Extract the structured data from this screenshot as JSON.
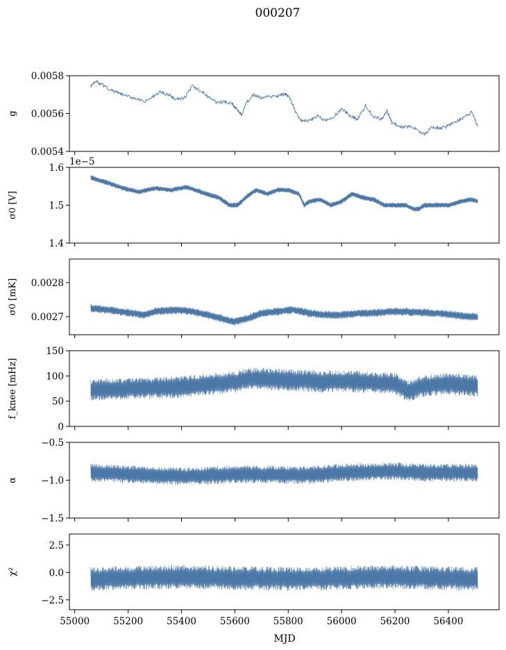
{
  "figure": {
    "title": "000207",
    "xlabel": "MJD"
  },
  "colors": {
    "series": "#4c78a8",
    "axis": "#000000",
    "background": "#ffffff"
  },
  "chart_data": [
    {
      "type": "line",
      "ylabel": "g",
      "ylim": [
        0.0054,
        0.0058
      ],
      "yticks": [
        0.0054,
        0.0056,
        0.0058
      ],
      "ytick_labels": [
        "0.0054",
        "0.0056",
        "0.0058"
      ],
      "xlim": [
        54980,
        56590
      ],
      "x": [
        55060,
        55080,
        55100,
        55140,
        55170,
        55200,
        55230,
        55260,
        55290,
        55320,
        55350,
        55380,
        55410,
        55440,
        55470,
        55500,
        55530,
        55560,
        55590,
        55610,
        55625,
        55640,
        55670,
        55700,
        55730,
        55760,
        55790,
        55810,
        55830,
        55850,
        55880,
        55910,
        55940,
        55970,
        56000,
        56030,
        56060,
        56090,
        56120,
        56150,
        56170,
        56190,
        56220,
        56250,
        56280,
        56310,
        56340,
        56370,
        56400,
        56430,
        56460,
        56490,
        56510
      ],
      "y": [
        0.005745,
        0.00577,
        0.005755,
        0.00572,
        0.005705,
        0.00569,
        0.00568,
        0.00566,
        0.005685,
        0.005715,
        0.0057,
        0.005675,
        0.00568,
        0.005745,
        0.00572,
        0.00569,
        0.00566,
        0.00566,
        0.00565,
        0.00562,
        0.005595,
        0.00565,
        0.0057,
        0.00568,
        0.00569,
        0.00569,
        0.005705,
        0.00567,
        0.0056,
        0.00556,
        0.00556,
        0.00559,
        0.00556,
        0.00558,
        0.005625,
        0.00559,
        0.00557,
        0.00564,
        0.00558,
        0.00557,
        0.005615,
        0.00555,
        0.00553,
        0.00553,
        0.00552,
        0.00549,
        0.00553,
        0.00552,
        0.005535,
        0.00556,
        0.00558,
        0.00561,
        0.00553
      ],
      "noise": 0
    },
    {
      "type": "line",
      "ylabel": "σ0 [V]",
      "offset_label": "1e−5",
      "ylim": [
        1.4e-05,
        1.6e-05
      ],
      "yticks": [
        1.4e-05,
        1.5e-05,
        1.6e-05
      ],
      "ytick_labels": [
        "1.4",
        "1.5",
        "1.6"
      ],
      "xlim": [
        54980,
        56590
      ],
      "x": [
        55060,
        55120,
        55180,
        55240,
        55300,
        55360,
        55420,
        55480,
        55540,
        55580,
        55610,
        55640,
        55680,
        55720,
        55760,
        55800,
        55840,
        55860,
        55880,
        55920,
        55960,
        56000,
        56040,
        56080,
        56120,
        56160,
        56200,
        56240,
        56270,
        56290,
        56310,
        56350,
        56400,
        56450,
        56480,
        56510
      ],
      "y": [
        1.573e-05,
        1.56e-05,
        1.545e-05,
        1.535e-05,
        1.545e-05,
        1.54e-05,
        1.548e-05,
        1.533e-05,
        1.52e-05,
        1.5e-05,
        1.5e-05,
        1.52e-05,
        1.54e-05,
        1.53e-05,
        1.54e-05,
        1.54e-05,
        1.53e-05,
        1.5e-05,
        1.51e-05,
        1.515e-05,
        1.5e-05,
        1.51e-05,
        1.53e-05,
        1.52e-05,
        1.515e-05,
        1.5e-05,
        1.5e-05,
        1.5e-05,
        1.49e-05,
        1.49e-05,
        1.5e-05,
        1.5e-05,
        1.5e-05,
        1.51e-05,
        1.515e-05,
        1.51e-05
      ],
      "noise": 7e-08
    },
    {
      "type": "line",
      "ylabel": "σ0 [mK]",
      "ylim": [
        0.002647,
        0.002869
      ],
      "yticks": [
        0.0027,
        0.0028
      ],
      "ytick_labels": [
        "0.0027",
        "0.0028"
      ],
      "xlim": [
        54980,
        56590
      ],
      "x": [
        55060,
        55120,
        55200,
        55260,
        55300,
        55380,
        55440,
        55500,
        55550,
        55600,
        55650,
        55700,
        55760,
        55820,
        55880,
        55940,
        56000,
        56060,
        56120,
        56180,
        56240,
        56300,
        56360,
        56420,
        56470,
        56510
      ],
      "y": [
        0.002725,
        0.00272,
        0.002712,
        0.002705,
        0.002715,
        0.00272,
        0.002715,
        0.002705,
        0.002695,
        0.002685,
        0.002695,
        0.00271,
        0.002715,
        0.00272,
        0.00271,
        0.002705,
        0.002705,
        0.00271,
        0.00271,
        0.002715,
        0.002715,
        0.002712,
        0.00271,
        0.002705,
        0.0027,
        0.0027
      ],
      "noise": 1.2e-05
    },
    {
      "type": "line",
      "ylabel": "f_knee [mHz]",
      "ylim": [
        0,
        150
      ],
      "yticks": [
        0,
        50,
        100,
        150
      ],
      "ytick_labels": [
        "0",
        "50",
        "100",
        "150"
      ],
      "xlim": [
        54980,
        56590
      ],
      "x": [
        55060,
        55200,
        55400,
        55600,
        55650,
        55800,
        55900,
        55910,
        56000,
        56200,
        56250,
        56300,
        56400,
        56510
      ],
      "y": [
        72,
        75,
        78,
        88,
        95,
        92,
        90,
        88,
        90,
        85,
        70,
        80,
        85,
        80
      ],
      "noise": 22
    },
    {
      "type": "line",
      "ylabel": "α",
      "ylim": [
        -1.5,
        -0.5
      ],
      "yticks": [
        -1.5,
        -1.0,
        -0.5
      ],
      "ytick_labels": [
        "−1.5",
        "−1.0",
        "−0.5"
      ],
      "xlim": [
        54980,
        56590
      ],
      "x": [
        55060,
        55200,
        55400,
        55600,
        55800,
        55900,
        56000,
        56200,
        56300,
        56510
      ],
      "y": [
        -0.9,
        -0.92,
        -0.95,
        -0.92,
        -0.93,
        -0.93,
        -0.9,
        -0.88,
        -0.9,
        -0.9
      ],
      "noise": 0.12
    },
    {
      "type": "line",
      "ylabel": "χ²",
      "ylim": [
        -3.4,
        3.5
      ],
      "yticks": [
        -2.5,
        0.0,
        2.5
      ],
      "ytick_labels": [
        "−2.5",
        "0.0",
        "2.5"
      ],
      "xlim": [
        54980,
        56590
      ],
      "x": [
        55060,
        55200,
        55400,
        55600,
        55800,
        56000,
        56200,
        56300,
        56510
      ],
      "y": [
        -0.6,
        -0.5,
        -0.4,
        -0.5,
        -0.6,
        -0.5,
        -0.4,
        -0.5,
        -0.6
      ],
      "noise": 1.1
    }
  ],
  "x_axis": {
    "ticks": [
      55000,
      55200,
      55400,
      55600,
      55800,
      56000,
      56200,
      56400
    ],
    "tick_labels": [
      "55000",
      "55200",
      "55400",
      "55600",
      "55800",
      "56000",
      "56200",
      "56400"
    ]
  }
}
